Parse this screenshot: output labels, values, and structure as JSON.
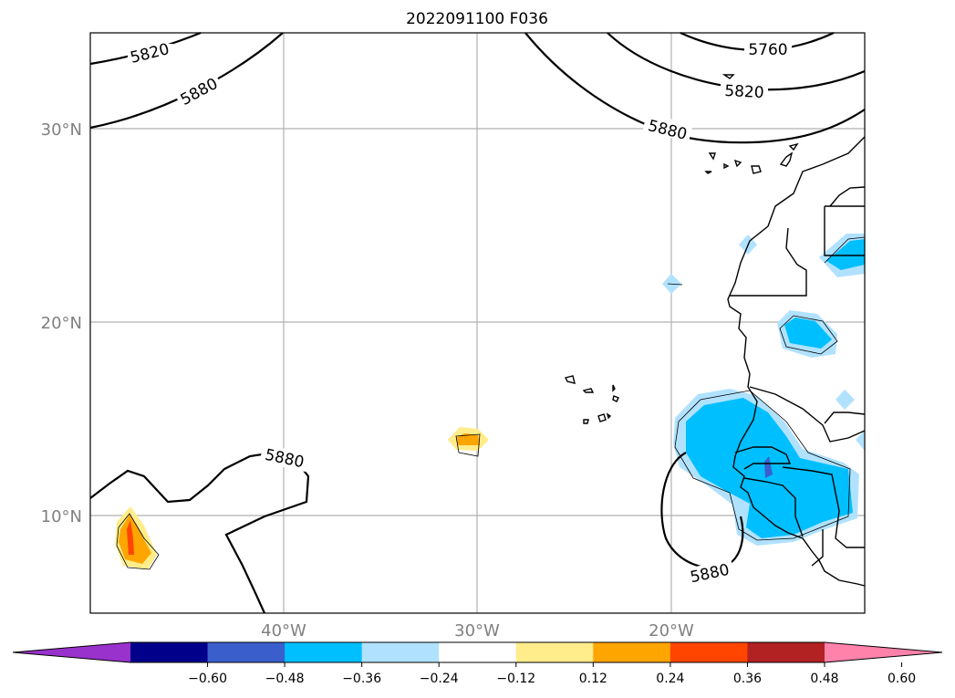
{
  "title": "2022091100 F036",
  "map": {
    "latitude_labels": [
      "30°N",
      "20°N",
      "10°N"
    ],
    "longitude_labels": [
      "40°W",
      "30°W",
      "20°W"
    ],
    "height_contour_labels": [
      "5820",
      "5880",
      "5760",
      "5820",
      "5880",
      "5880",
      "5880"
    ],
    "grid": true,
    "coastline_color": "#000000"
  },
  "colorbar": {
    "orientation": "horizontal",
    "extend": "both",
    "colors": [
      "#9932cc",
      "#00008b",
      "#3a5fcd",
      "#00bfff",
      "#b0e2ff",
      "#ffffff",
      "#ffec8b",
      "#ffa500",
      "#ff4500",
      "#b22222",
      "#ff82ab"
    ],
    "ticks": [
      "−0.60",
      "−0.48",
      "−0.36",
      "−0.24",
      "−0.12",
      "0.12",
      "0.24",
      "0.36",
      "0.48",
      "0.60"
    ]
  }
}
